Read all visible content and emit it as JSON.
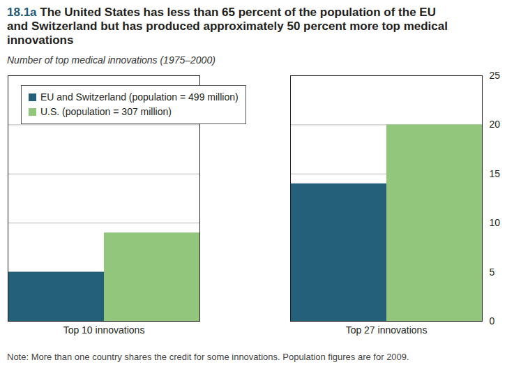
{
  "chart_data": {
    "type": "bar",
    "title": "18.1a The United States has less than 65 percent of the population of the EU and Switzerland but has produced approximately 50 percent more top medical innovations",
    "subtitle": "Number of top medical innovations (1975–2000)",
    "note": "Note: More than one country shares the credit for some innovations. Population figures are for 2009.",
    "categories": [
      "Top 10 innovations",
      "Top 27 innovations"
    ],
    "series": [
      {
        "name": "EU and Switzerland (population = 499 million)",
        "color": "#25607b",
        "values": [
          5,
          14
        ]
      },
      {
        "name": "U.S. (population = 307 million)",
        "color": "#93c67d",
        "values": [
          9,
          20
        ]
      }
    ],
    "ylim": [
      0,
      25
    ],
    "yticks": [
      0,
      5,
      10,
      15,
      20,
      25
    ],
    "grid": true,
    "legend": "top-left"
  }
}
